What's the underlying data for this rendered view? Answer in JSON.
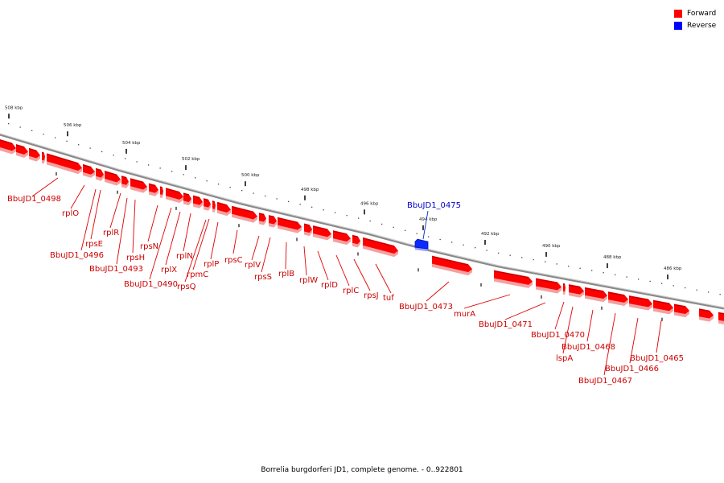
{
  "legend": {
    "forward_label": "Forward",
    "reverse_label": "Reverse",
    "forward_color": "#ff0000",
    "reverse_color": "#0000ff"
  },
  "caption": "Borrelia burgdorferi JD1, complete genome. - 0..922801",
  "scale_ticks": [
    {
      "label": "508 kbp",
      "kbp": 508
    },
    {
      "label": "506 kbp",
      "kbp": 506
    },
    {
      "label": "504 kbp",
      "kbp": 504
    },
    {
      "label": "502 kbp",
      "kbp": 502
    },
    {
      "label": "500 kbp",
      "kbp": 500
    },
    {
      "label": "498 kbp",
      "kbp": 498
    },
    {
      "label": "496 kbp",
      "kbp": 496
    },
    {
      "label": "494 kbp",
      "kbp": 494
    },
    {
      "label": "492 kbp",
      "kbp": 492
    },
    {
      "label": "490 kbp",
      "kbp": 490
    },
    {
      "label": "488 kbp",
      "kbp": 488
    },
    {
      "label": "486 kbp",
      "kbp": 486
    }
  ],
  "gene_labels": [
    {
      "name": "BbuJD1_0498",
      "strand": "forward"
    },
    {
      "name": "rplO",
      "strand": "forward"
    },
    {
      "name": "rpsE",
      "strand": "forward"
    },
    {
      "name": "BbuJD1_0496",
      "strand": "forward"
    },
    {
      "name": "rplR",
      "strand": "forward"
    },
    {
      "name": "rpsH",
      "strand": "forward"
    },
    {
      "name": "BbuJD1_0493",
      "strand": "forward"
    },
    {
      "name": "rpsN",
      "strand": "forward"
    },
    {
      "name": "rplX",
      "strand": "forward"
    },
    {
      "name": "BbuJD1_0490",
      "strand": "forward"
    },
    {
      "name": "rplN",
      "strand": "forward"
    },
    {
      "name": "rpsQ",
      "strand": "forward"
    },
    {
      "name": "rpmC",
      "strand": "forward"
    },
    {
      "name": "rplP",
      "strand": "forward"
    },
    {
      "name": "rpsC",
      "strand": "forward"
    },
    {
      "name": "rplV",
      "strand": "forward"
    },
    {
      "name": "rpsS",
      "strand": "forward"
    },
    {
      "name": "rplB",
      "strand": "forward"
    },
    {
      "name": "rplW",
      "strand": "forward"
    },
    {
      "name": "rplD",
      "strand": "forward"
    },
    {
      "name": "rplC",
      "strand": "forward"
    },
    {
      "name": "rpsJ",
      "strand": "forward"
    },
    {
      "name": "tuf",
      "strand": "forward"
    },
    {
      "name": "BbuJD1_0475",
      "strand": "reverse"
    },
    {
      "name": "BbuJD1_0473",
      "strand": "forward"
    },
    {
      "name": "murA",
      "strand": "forward"
    },
    {
      "name": "BbuJD1_0471",
      "strand": "forward"
    },
    {
      "name": "BbuJD1_0470",
      "strand": "forward"
    },
    {
      "name": "lspA",
      "strand": "forward"
    },
    {
      "name": "BbuJD1_0468",
      "strand": "forward"
    },
    {
      "name": "BbuJD1_0467",
      "strand": "forward"
    },
    {
      "name": "BbuJD1_0466",
      "strand": "forward"
    },
    {
      "name": "BbuJD1_0465",
      "strand": "forward"
    }
  ]
}
